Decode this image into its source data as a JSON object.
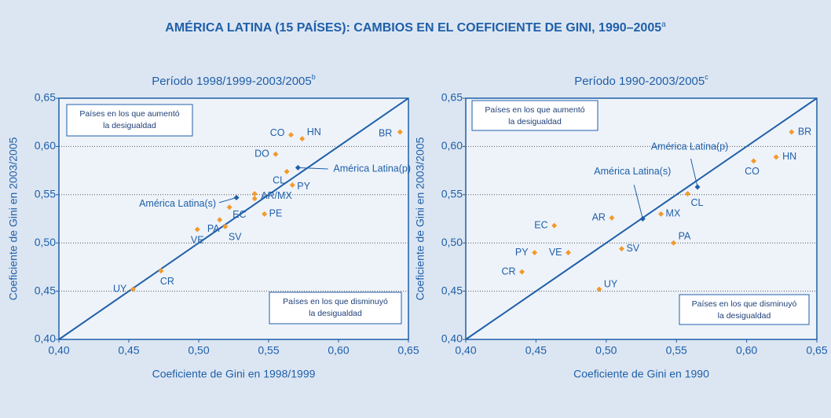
{
  "title": "AMÉRICA LATINA (15 PAÍSES): CAMBIOS EN EL COEFICIENTE DE GINI, 1990–2005",
  "title_note": "a",
  "chart_data": [
    {
      "type": "scatter",
      "title": "Período 1998/1999-2003/2005",
      "title_note": "b",
      "x_label": "Coeficiente de Gini en 1998/1999",
      "y_label": "Coeficiente de Gini en 2003/2005",
      "xlim": [
        0.4,
        0.65
      ],
      "ylim": [
        0.4,
        0.65
      ],
      "xticks": [
        {
          "value": 0.4,
          "label": "0,40"
        },
        {
          "value": 0.45,
          "label": "0,45"
        },
        {
          "value": 0.5,
          "label": "0,50"
        },
        {
          "value": 0.55,
          "label": "0,55"
        },
        {
          "value": 0.6,
          "label": "0,60"
        },
        {
          "value": 0.65,
          "label": "0,65"
        }
      ],
      "yticks": [
        {
          "value": 0.4,
          "label": "0,40"
        },
        {
          "value": 0.45,
          "label": "0,45"
        },
        {
          "value": 0.5,
          "label": "0,50"
        },
        {
          "value": 0.55,
          "label": "0,55"
        },
        {
          "value": 0.6,
          "label": "0,60"
        },
        {
          "value": 0.65,
          "label": "0,65"
        }
      ],
      "grid": true,
      "annotations": [
        [
          "Países en los que aumentó",
          "la desigualdad"
        ],
        [
          "Países en los que disminuyó",
          "la desigualdad"
        ]
      ],
      "series": [
        {
          "color": "#f39a2b",
          "labels": [
            "BR",
            "CO",
            "HN",
            "DO",
            "CL",
            "PY",
            "AR/MX",
            null,
            "EC",
            "PE",
            "PA",
            "VE",
            "SV",
            "CR",
            "UY"
          ],
          "x": [
            0.644,
            0.566,
            0.574,
            0.555,
            0.563,
            0.567,
            0.54,
            0.54,
            0.522,
            0.547,
            0.515,
            0.499,
            0.519,
            0.473,
            0.453
          ],
          "values": [
            0.615,
            0.612,
            0.608,
            0.592,
            0.574,
            0.56,
            0.551,
            0.546,
            0.537,
            0.53,
            0.524,
            0.514,
            0.517,
            0.471,
            0.452
          ]
        },
        {
          "color": "#1f5fa8",
          "labels": [
            "América Latina(p)",
            "América Latina(s)"
          ],
          "x": [
            0.571,
            0.527
          ],
          "values": [
            0.578,
            0.547
          ]
        }
      ]
    },
    {
      "type": "scatter",
      "title": "Período 1990-2003/2005",
      "title_note": "c",
      "x_label": "Coeficiente de Gini en 1990",
      "y_label": "Coeficiente de Gini en 2003/2005",
      "xlim": [
        0.4,
        0.65
      ],
      "ylim": [
        0.4,
        0.65
      ],
      "xticks": [
        {
          "value": 0.4,
          "label": "0,40"
        },
        {
          "value": 0.45,
          "label": "0,45"
        },
        {
          "value": 0.5,
          "label": "0,50"
        },
        {
          "value": 0.55,
          "label": "0,55"
        },
        {
          "value": 0.6,
          "label": "0,60"
        },
        {
          "value": 0.65,
          "label": "0,65"
        }
      ],
      "yticks": [
        {
          "value": 0.4,
          "label": "0,40"
        },
        {
          "value": 0.45,
          "label": "0,45"
        },
        {
          "value": 0.5,
          "label": "0,50"
        },
        {
          "value": 0.55,
          "label": "0,55"
        },
        {
          "value": 0.6,
          "label": "0,60"
        },
        {
          "value": 0.65,
          "label": "0,65"
        }
      ],
      "grid": true,
      "annotations": [
        [
          "Países en los que aumentó",
          "la desigualdad"
        ],
        [
          "Países en los que disminuyó",
          "la desigualdad"
        ]
      ],
      "series": [
        {
          "color": "#f39a2b",
          "labels": [
            "BR",
            "HN",
            "CO",
            "CL",
            "AR",
            "MX",
            "EC",
            "PA",
            "SV",
            "PY",
            "VE",
            "CR",
            "UY"
          ],
          "x": [
            0.632,
            0.621,
            0.605,
            0.558,
            0.504,
            0.539,
            0.463,
            0.548,
            0.511,
            0.449,
            0.473,
            0.44,
            0.495
          ],
          "values": [
            0.615,
            0.589,
            0.585,
            0.551,
            0.526,
            0.53,
            0.518,
            0.5,
            0.494,
            0.49,
            0.49,
            0.47,
            0.452
          ]
        },
        {
          "color": "#1f5fa8",
          "labels": [
            "América Latina(p)",
            "América Latina(s)"
          ],
          "x": [
            0.565,
            0.526
          ],
          "values": [
            0.558,
            0.525
          ]
        }
      ]
    }
  ]
}
